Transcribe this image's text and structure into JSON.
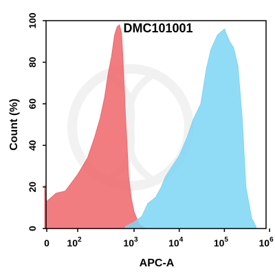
{
  "chart_data": {
    "type": "area",
    "title": "DMC101001",
    "xlabel": "APC-A",
    "ylabel": "Count (%)",
    "x_scale": "biexponential",
    "xlim": [
      -100,
      1000000
    ],
    "ylim": [
      0,
      100
    ],
    "x_ticks": [
      {
        "base": "0",
        "exp": ""
      },
      {
        "base": "10",
        "exp": "2"
      },
      {
        "base": "10",
        "exp": "3"
      },
      {
        "base": "10",
        "exp": "4"
      },
      {
        "base": "10",
        "exp": "5"
      },
      {
        "base": "10",
        "exp": "6"
      }
    ],
    "y_ticks": [
      "0",
      "20",
      "40",
      "60",
      "80",
      "100"
    ],
    "grid": false,
    "legend": "none",
    "series": [
      {
        "color": "#f0666b",
        "x": [
          -100,
          -50,
          0,
          30,
          60,
          100,
          150,
          200,
          250,
          300,
          350,
          400,
          450,
          500,
          550,
          600,
          650,
          700,
          750,
          800,
          900,
          1000,
          1300,
          1800
        ],
        "y": [
          21,
          15,
          13,
          17,
          18,
          26,
          34,
          44,
          53,
          63,
          75,
          83,
          93,
          97,
          98,
          94,
          76,
          56,
          40,
          25,
          14,
          8,
          2,
          0
        ]
      },
      {
        "color": "#7dd6f5",
        "x": [
          700,
          1000,
          1500,
          2000,
          3000,
          4000,
          5000,
          7000,
          10000,
          15000,
          20000,
          30000,
          40000,
          50000,
          70000,
          100000,
          130000,
          160000,
          200000,
          250000,
          300000,
          400000,
          500000
        ],
        "y": [
          1,
          3,
          6,
          12,
          15,
          20,
          25,
          30,
          35,
          44,
          52,
          60,
          77,
          86,
          93,
          96,
          90,
          87,
          78,
          52,
          20,
          5,
          1
        ]
      }
    ]
  }
}
